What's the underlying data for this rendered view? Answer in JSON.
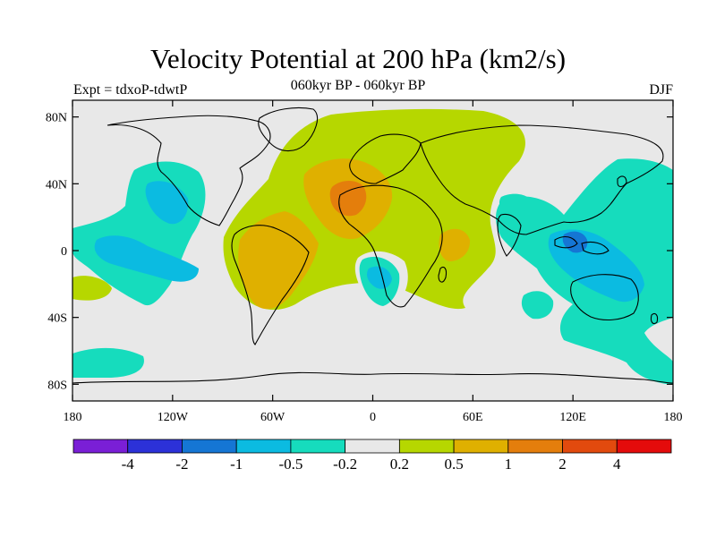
{
  "title": "Velocity Potential at 200 hPa (km2/s)",
  "left_label": "Expt = tdxoP-tdwtP",
  "center_label": "060kyr BP - 060kyr BP",
  "right_label": "DJF",
  "map": {
    "lat_ticks": [
      "80N",
      "40N",
      "0",
      "40S",
      "80S"
    ],
    "lon_ticks": [
      "180",
      "120W",
      "60W",
      "0",
      "60E",
      "120E",
      "180"
    ]
  },
  "colorbar": {
    "levels": [
      "-4",
      "-2",
      "-1",
      "-0.5",
      "-0.2",
      "0.2",
      "0.5",
      "1",
      "2",
      "4"
    ],
    "colors": [
      "#7a1fd6",
      "#2c31d8",
      "#1576d4",
      "#0bbbe1",
      "#16dcbd",
      "#e8e8e8",
      "#b6d700",
      "#dfb000",
      "#e47e0c",
      "#e24a0e",
      "#e40b0b"
    ]
  }
}
